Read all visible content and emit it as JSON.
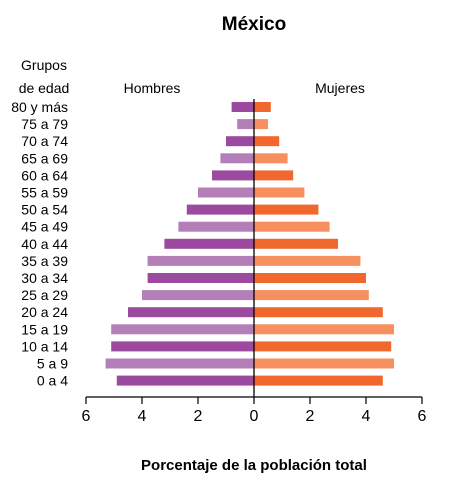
{
  "chart_data": {
    "type": "bar",
    "orientation": "horizontal",
    "subtype": "population-pyramid",
    "title": "México",
    "ylabel": "Grupos de edad",
    "xlabel": "Porcentaje de la población total",
    "xlim": [
      -6,
      6
    ],
    "xticks": [
      -6,
      -4,
      -2,
      0,
      2,
      4,
      6
    ],
    "xtick_labels": [
      "6",
      "4",
      "2",
      "0",
      "2",
      "4",
      "6"
    ],
    "categories": [
      "80 y más",
      "75 a 79",
      "70 a 74",
      "65 a 69",
      "60 a 64",
      "55 a 59",
      "50 a 54",
      "45 a 49",
      "40 a 44",
      "35 a 39",
      "30 a 34",
      "25 a 29",
      "20 a 24",
      "15 a 19",
      "10 a 14",
      "5 a 9",
      "0 a 4"
    ],
    "series": [
      {
        "name": "Hombres",
        "side": "left",
        "values": [
          0.8,
          0.6,
          1.0,
          1.2,
          1.5,
          2.0,
          2.4,
          2.7,
          3.2,
          3.8,
          3.8,
          4.0,
          4.5,
          5.1,
          5.1,
          5.3,
          4.9
        ],
        "colors": [
          "#9c4a9f",
          "#b47fb8"
        ]
      },
      {
        "name": "Mujeres",
        "side": "right",
        "values": [
          0.6,
          0.5,
          0.9,
          1.2,
          1.4,
          1.8,
          2.3,
          2.7,
          3.0,
          3.8,
          4.0,
          4.1,
          4.6,
          5.0,
          4.9,
          5.0,
          4.6
        ],
        "colors": [
          "#f0682d",
          "#f78f5e"
        ]
      }
    ],
    "grid": false,
    "legend": "series names printed above the bars"
  }
}
